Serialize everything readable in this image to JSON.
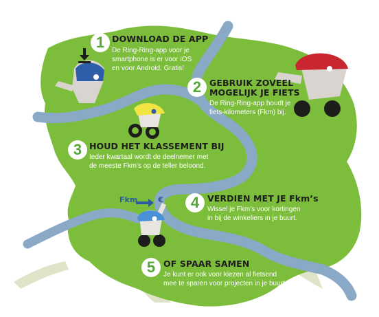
{
  "steps": [
    {
      "number": "1",
      "title": "DOWNLOAD DE APP",
      "lines": [
        "De Ring-Ring-app voor je",
        "smartphone is er voor iOS",
        "en voor Android. Gratis!"
      ]
    },
    {
      "number": "2",
      "title_lines": [
        "GEBRUIK ZOVEEL",
        "MOGELIJK JE FIETS"
      ],
      "lines": [
        "De Ring-Ring-app houdt je",
        "fiets-kilometers (Fkm) bij."
      ]
    },
    {
      "number": "3",
      "title": "HOUD HET KLASSEMENT BIJ",
      "lines": [
        "Ieder kwartaal wordt de deelnemer met",
        "de meeste Fkm’s op de teller beloond."
      ]
    },
    {
      "number": "4",
      "title": "VERDIEN MET JE Fkm’s",
      "lines": [
        "Wissel je Fkm’s voor kortingen",
        "in bij de winkeliers in je buurt."
      ]
    },
    {
      "number": "5",
      "title": "OF SPAAR SAMEN",
      "lines": [
        "Je kunt er ook voor kiezen al fietsend",
        "mee te sparen voor projecten in je buurt."
      ]
    }
  ],
  "exchange_label": "Fkm",
  "exchange_symbol": "€",
  "colors": {
    "land": "#7cbd3c",
    "land_dark": "#5a9e2c",
    "river": "#8aa9c7",
    "road": "#d9e3cc",
    "number": "#56a836",
    "title": "#1d1d1b",
    "helmet_blue": "#2f5ea8",
    "helmet_red": "#c8272f",
    "helmet_yellow": "#f1e544"
  },
  "icons": [
    "download-arrow-icon",
    "euro-exchange-icon"
  ]
}
